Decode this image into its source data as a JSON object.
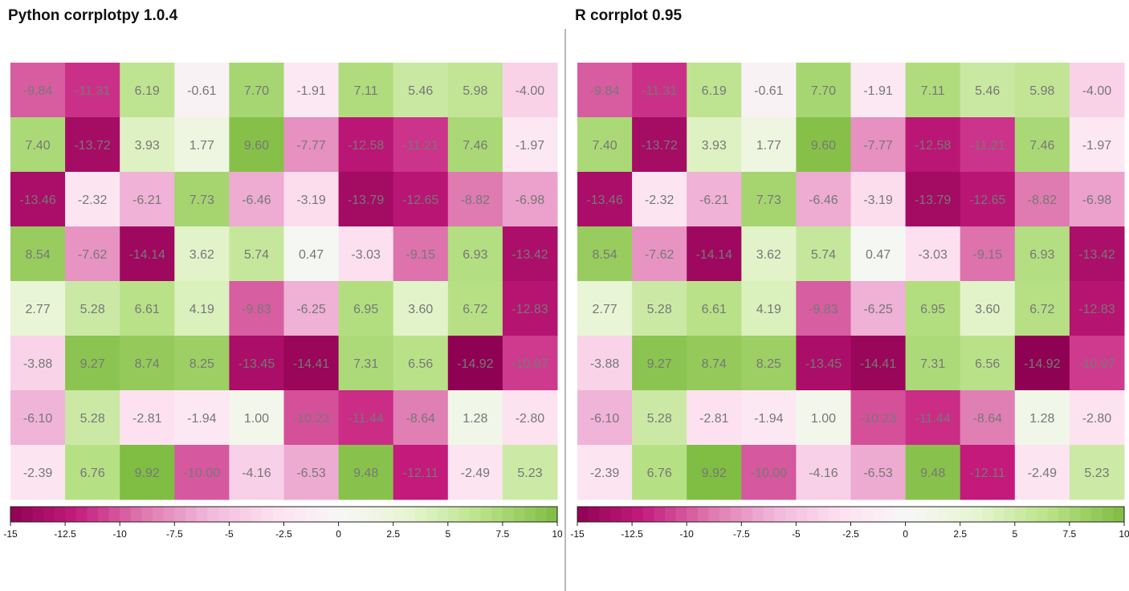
{
  "colors": {
    "scale": [
      "#8e0152",
      "#c51b7d",
      "#de77ae",
      "#f1b6da",
      "#fde0ef",
      "#f7f7f7",
      "#e6f5d0",
      "#b8e186",
      "#7fbc41"
    ],
    "cell_text": "#777777"
  },
  "panels": [
    {
      "title": "Python corrplotpy 1.0.4"
    },
    {
      "title": "R corrplot 0.95"
    }
  ],
  "chart_data": {
    "type": "heatmap",
    "rows": 8,
    "cols": 10,
    "values": [
      [
        -9.84,
        -11.31,
        6.19,
        -0.61,
        7.7,
        -1.91,
        7.11,
        5.46,
        5.98,
        -4.0
      ],
      [
        7.4,
        -13.72,
        3.93,
        1.77,
        9.6,
        -7.77,
        -12.58,
        -11.21,
        7.46,
        -1.97
      ],
      [
        -13.46,
        -2.32,
        -6.21,
        7.73,
        -6.46,
        -3.19,
        -13.79,
        -12.65,
        -8.82,
        -6.98
      ],
      [
        8.54,
        -7.62,
        -14.14,
        3.62,
        5.74,
        0.47,
        -3.03,
        -9.15,
        6.93,
        -13.42
      ],
      [
        2.77,
        5.28,
        6.61,
        4.19,
        -9.83,
        -6.25,
        6.95,
        3.6,
        6.72,
        -12.83
      ],
      [
        -3.88,
        9.27,
        8.74,
        8.25,
        -13.45,
        -14.41,
        7.31,
        6.56,
        -14.92,
        -10.97
      ],
      [
        -6.1,
        5.28,
        -2.81,
        -1.94,
        1.0,
        -10.23,
        -11.44,
        -8.64,
        1.28,
        -2.8
      ],
      [
        -2.39,
        6.76,
        9.92,
        -10.0,
        -4.16,
        -6.53,
        9.48,
        -12.11,
        -2.49,
        5.23
      ]
    ],
    "value_labels": [
      [
        "-9.84",
        "-11.31",
        "6.19",
        "-0.61",
        "7.70",
        "-1.91",
        "7.11",
        "5.46",
        "5.98",
        "-4.00"
      ],
      [
        "7.40",
        "-13.72",
        "3.93",
        "1.77",
        "9.60",
        "-7.77",
        "-12.58",
        "-11.21",
        "7.46",
        "-1.97"
      ],
      [
        "-13.46",
        "-2.32",
        "-6.21",
        "7.73",
        "-6.46",
        "-3.19",
        "-13.79",
        "-12.65",
        "-8.82",
        "-6.98"
      ],
      [
        "8.54",
        "-7.62",
        "-14.14",
        "3.62",
        "5.74",
        "0.47",
        "-3.03",
        "-9.15",
        "6.93",
        "-13.42"
      ],
      [
        "2.77",
        "5.28",
        "6.61",
        "4.19",
        "-9.83",
        "-6.25",
        "6.95",
        "3.60",
        "6.72",
        "-12.83"
      ],
      [
        "-3.88",
        "9.27",
        "8.74",
        "8.25",
        "-13.45",
        "-14.41",
        "7.31",
        "6.56",
        "-14.92",
        "-10.97"
      ],
      [
        "-6.10",
        "5.28",
        "-2.81",
        "-1.94",
        "1.00",
        "-10.23",
        "-11.44",
        "-8.64",
        "1.28",
        "-2.80"
      ],
      [
        "-2.39",
        "6.76",
        "9.92",
        "-10.00",
        "-4.16",
        "-6.53",
        "9.48",
        "-12.11",
        "-2.49",
        "5.23"
      ]
    ],
    "colorbar": {
      "range": [
        -15,
        10
      ],
      "ticks": [
        -15,
        -12.5,
        -10,
        -7.5,
        -5,
        -2.5,
        0,
        2.5,
        5,
        7.5,
        10
      ],
      "tick_labels": [
        "-15",
        "-12.5",
        "-10",
        "-7.5",
        "-5",
        "-2.5",
        "0",
        "2.5",
        "5",
        "7.5",
        "10"
      ],
      "steps": 50
    },
    "title": "",
    "xlabel": "",
    "ylabel": ""
  }
}
